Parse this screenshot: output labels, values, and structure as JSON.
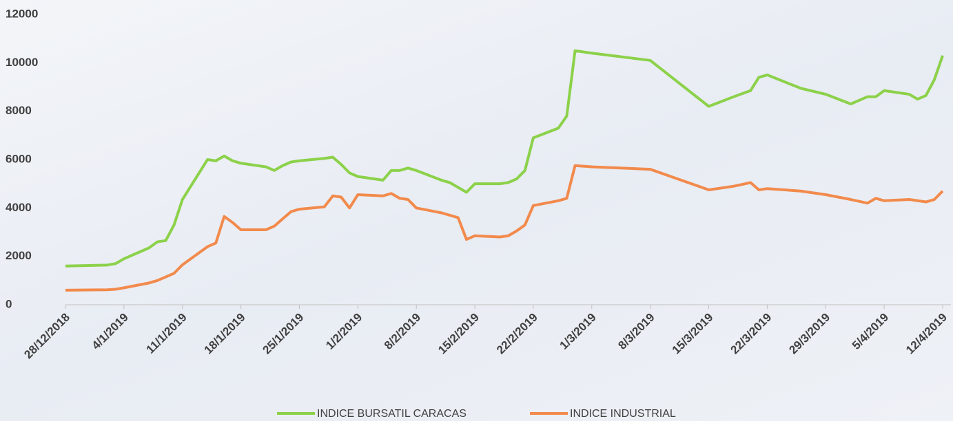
{
  "chart_data": {
    "type": "line",
    "x": [
      "28/12/2018",
      "2/1/2019",
      "3/1/2019",
      "4/1/2019",
      "7/1/2019",
      "8/1/2019",
      "9/1/2019",
      "10/1/2019",
      "11/1/2019",
      "14/1/2019",
      "15/1/2019",
      "16/1/2019",
      "17/1/2019",
      "18/1/2019",
      "21/1/2019",
      "22/1/2019",
      "23/1/2019",
      "24/1/2019",
      "25/1/2019",
      "28/1/2019",
      "29/1/2019",
      "30/1/2019",
      "31/1/2019",
      "1/2/2019",
      "4/2/2019",
      "5/2/2019",
      "6/2/2019",
      "7/2/2019",
      "8/2/2019",
      "11/2/2019",
      "12/2/2019",
      "13/2/2019",
      "14/2/2019",
      "15/2/2019",
      "18/2/2019",
      "19/2/2019",
      "20/2/2019",
      "21/2/2019",
      "22/2/2019",
      "25/2/2019",
      "26/2/2019",
      "27/2/2019",
      "1/3/2019",
      "8/3/2019",
      "15/3/2019",
      "18/3/2019",
      "20/3/2019",
      "21/3/2019",
      "22/3/2019",
      "26/3/2019",
      "29/3/2019",
      "1/4/2019",
      "3/4/2019",
      "4/4/2019",
      "5/4/2019",
      "8/4/2019",
      "9/4/2019",
      "10/4/2019",
      "11/4/2019",
      "12/4/2019"
    ],
    "series": [
      {
        "name": "INDICE BURSATIL CARACAS",
        "color": "#8cd14a",
        "values": [
          1600,
          1640,
          1700,
          1900,
          2350,
          2600,
          2650,
          3300,
          4350,
          6000,
          5950,
          6150,
          5950,
          5850,
          5700,
          5550,
          5750,
          5900,
          5950,
          6050,
          6100,
          5800,
          5450,
          5300,
          5150,
          5550,
          5550,
          5650,
          5550,
          5150,
          5050,
          4850,
          4650,
          5000,
          5000,
          5050,
          5200,
          5550,
          6900,
          7300,
          7800,
          10500,
          10400,
          10100,
          8200,
          8600,
          8850,
          9400,
          9500,
          8950,
          8700,
          8300,
          8600,
          8600,
          8850,
          8700,
          8500,
          8650,
          9300,
          10300
        ]
      },
      {
        "name": "INDICE INDUSTRIAL",
        "color": "#f28a4c",
        "values": [
          600,
          620,
          640,
          700,
          900,
          1000,
          1150,
          1300,
          1650,
          2400,
          2550,
          3650,
          3400,
          3100,
          3100,
          3250,
          3550,
          3850,
          3950,
          4050,
          4500,
          4450,
          4000,
          4550,
          4500,
          4600,
          4400,
          4350,
          4000,
          3800,
          3700,
          3600,
          2700,
          2850,
          2800,
          2850,
          3050,
          3300,
          4100,
          4300,
          4400,
          5750,
          5700,
          5600,
          4750,
          4900,
          5050,
          4750,
          4800,
          4700,
          4550,
          4350,
          4200,
          4400,
          4300,
          4350,
          4300,
          4250,
          4350,
          4700
        ]
      }
    ],
    "xlim": [
      "28/12/2018",
      "12/4/2019"
    ],
    "xticks": [
      "28/12/2018",
      "4/1/2019",
      "11/1/2019",
      "18/1/2019",
      "25/1/2019",
      "1/2/2019",
      "8/2/2019",
      "15/2/2019",
      "22/2/2019",
      "1/3/2019",
      "8/3/2019",
      "15/3/2019",
      "22/3/2019",
      "29/3/2019",
      "5/4/2019",
      "12/4/2019"
    ],
    "ylim": [
      0,
      12000
    ],
    "yticks": [
      0,
      2000,
      4000,
      6000,
      8000,
      10000,
      12000
    ],
    "grid": false
  }
}
